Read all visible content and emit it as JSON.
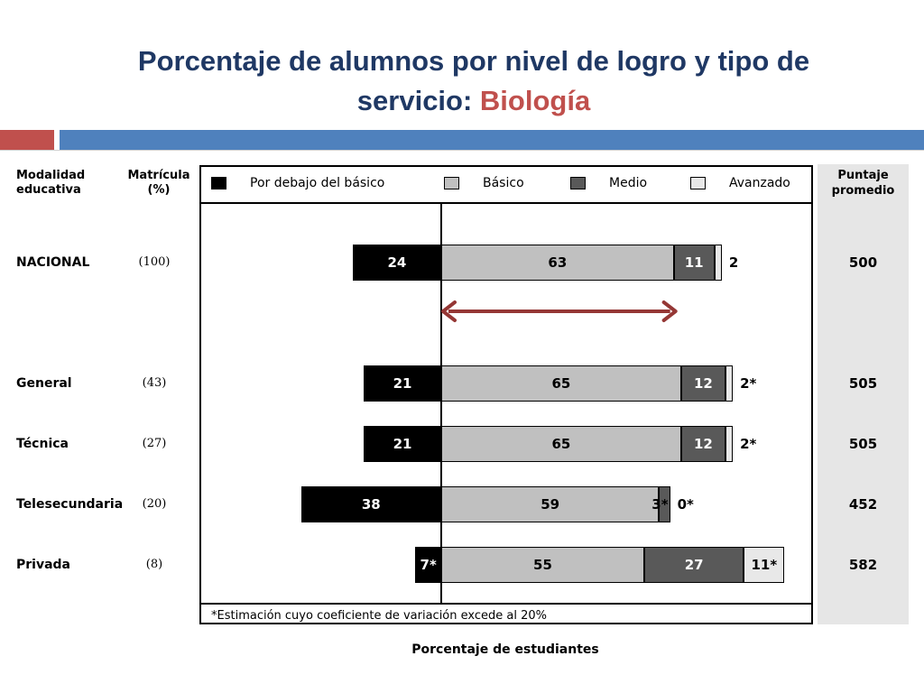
{
  "title": {
    "line1": "Porcentaje de alumnos por nivel de logro y tipo de",
    "line2_prefix": "servicio: ",
    "line2_accent": "Biología"
  },
  "headers": {
    "modalidad_line1": "Modalidad",
    "modalidad_line2": "educativa",
    "matricula_line1": "Matrícula",
    "matricula_line2": "(%)",
    "puntaje_line1": "Puntaje",
    "puntaje_line2": "promedio"
  },
  "colors": {
    "title": "#1f3864",
    "accent": "#c0504d",
    "band_blue": "#4f81bd",
    "por_debajo": "#000000",
    "basico": "#c0c0c0",
    "medio": "#595959",
    "avanzado": "#e8e8e8",
    "arrow": "#953735"
  },
  "chart_data": {
    "type": "bar",
    "orientation": "horizontal-diverging",
    "xlabel": "Porcentaje de estudiantes",
    "footnote": "*Estimación cuyo coeficiente de variación excede al 20%",
    "legend": [
      {
        "key": "por_debajo",
        "label": "Por debajo del básico"
      },
      {
        "key": "basico",
        "label": "Básico"
      },
      {
        "key": "medio",
        "label": "Medio"
      },
      {
        "key": "avanzado",
        "label": "Avanzado"
      }
    ],
    "legend_position": "top",
    "rows": [
      {
        "name": "NACIONAL",
        "matricula": "(100)",
        "puntaje": "500",
        "por_debajo": 24,
        "basico": 63,
        "medio": 11,
        "avanzado": 2,
        "labels": {
          "por_debajo": "24",
          "basico": "63",
          "medio": "11",
          "avanzado": "2"
        }
      },
      {
        "name": "General",
        "matricula": "(43)",
        "puntaje": "505",
        "por_debajo": 21,
        "basico": 65,
        "medio": 12,
        "avanzado": 2,
        "labels": {
          "por_debajo": "21",
          "basico": "65",
          "medio": "12",
          "avanzado": "2*"
        }
      },
      {
        "name": "Técnica",
        "matricula": "(27)",
        "puntaje": "505",
        "por_debajo": 21,
        "basico": 65,
        "medio": 12,
        "avanzado": 2,
        "labels": {
          "por_debajo": "21",
          "basico": "65",
          "medio": "12",
          "avanzado": "2*"
        }
      },
      {
        "name": "Telesecundaria",
        "matricula": "(20)",
        "puntaje": "452",
        "por_debajo": 38,
        "basico": 59,
        "medio": 3,
        "avanzado": 0,
        "labels": {
          "por_debajo": "38",
          "basico": "59",
          "medio": "3*",
          "avanzado": "0*"
        }
      },
      {
        "name": "Privada",
        "matricula": "(8)",
        "puntaje": "582",
        "por_debajo": 7,
        "basico": 55,
        "medio": 27,
        "avanzado": 11,
        "labels": {
          "por_debajo": "7*",
          "basico": "55",
          "medio": "27",
          "avanzado": "11*"
        }
      }
    ],
    "annotation_arrow": {
      "from": 0,
      "to": 63
    }
  }
}
